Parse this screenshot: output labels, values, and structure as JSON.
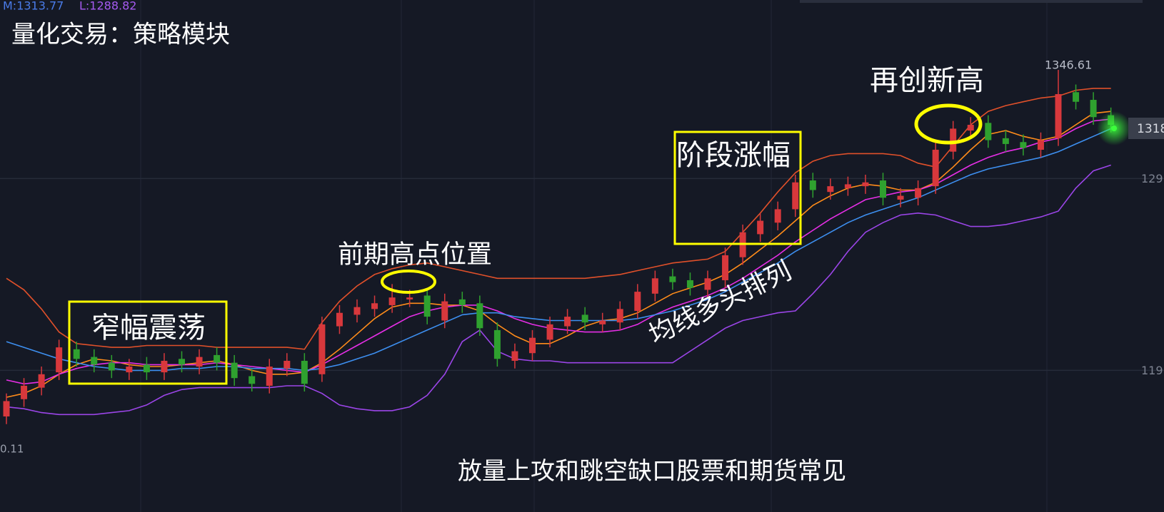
{
  "chart_data": {
    "type": "candlestick",
    "title": "量化交易：策略模块",
    "indicator_labels": [
      "M:1313.77",
      "L:1288.82"
    ],
    "ylim": [
      1116.2,
      1383.05
    ],
    "yticks": [
      {
        "value": 1290,
        "label": "129"
      },
      {
        "value": 1190,
        "label": "119"
      }
    ],
    "grid": true,
    "up_color": "#d8383c",
    "down_color": "#2fa12f",
    "open": [
      1166,
      1175,
      1181,
      1189,
      1201,
      1197,
      1194,
      1189,
      1193,
      1189,
      1196,
      1192,
      1198,
      1194,
      1187,
      1182,
      1191,
      1195,
      1188,
      1213,
      1219,
      1222,
      1224,
      1227,
      1229,
      1216,
      1227,
      1225,
      1211,
      1195,
      1199,
      1206,
      1213,
      1219,
      1214,
      1215,
      1221,
      1230,
      1239,
      1237,
      1232,
      1237,
      1249,
      1261,
      1267,
      1274,
      1289,
      1283,
      1285,
      1286,
      1289,
      1279,
      1280,
      1286,
      1304,
      1315,
      1319,
      1311,
      1309,
      1305,
      1311,
      1335,
      1331,
      1323
    ],
    "high": [
      1178,
      1186,
      1192,
      1206,
      1205,
      1201,
      1198,
      1196,
      1197,
      1199,
      1200,
      1201,
      1202,
      1198,
      1191,
      1196,
      1199,
      1199,
      1218,
      1224,
      1227,
      1229,
      1235,
      1232,
      1233,
      1230,
      1231,
      1229,
      1215,
      1204,
      1211,
      1218,
      1222,
      1223,
      1220,
      1226,
      1235,
      1242,
      1243,
      1241,
      1242,
      1254,
      1266,
      1272,
      1278,
      1292,
      1293,
      1290,
      1291,
      1292,
      1293,
      1285,
      1289,
      1309,
      1320,
      1322,
      1323,
      1315,
      1313,
      1314,
      1346.61,
      1339,
      1335,
      1327
    ],
    "low": [
      1162,
      1171,
      1177,
      1185,
      1192,
      1189,
      1186,
      1185,
      1185,
      1185,
      1189,
      1188,
      1190,
      1182,
      1179,
      1178,
      1187,
      1179,
      1184,
      1209,
      1215,
      1218,
      1220,
      1223,
      1214,
      1212,
      1220,
      1208,
      1192,
      1191,
      1195,
      1202,
      1209,
      1211,
      1210,
      1211,
      1217,
      1226,
      1232,
      1229,
      1228,
      1233,
      1245,
      1257,
      1263,
      1270,
      1280,
      1279,
      1281,
      1282,
      1276,
      1275,
      1276,
      1282,
      1300,
      1311,
      1306,
      1304,
      1302,
      1301,
      1307,
      1326,
      1318,
      1314
    ],
    "close": [
      1174,
      1182,
      1188,
      1202,
      1196,
      1193,
      1190,
      1192,
      1189,
      1195,
      1193,
      1197,
      1194,
      1186,
      1183,
      1192,
      1195,
      1183,
      1214,
      1220,
      1223,
      1225,
      1228,
      1228,
      1218,
      1226,
      1224,
      1212,
      1196,
      1200,
      1207,
      1214,
      1218,
      1215,
      1216,
      1222,
      1231,
      1238,
      1236,
      1233,
      1238,
      1250,
      1262,
      1268,
      1274,
      1288,
      1284,
      1286,
      1287,
      1288,
      1280,
      1281,
      1285,
      1305,
      1316,
      1318,
      1310,
      1308,
      1306,
      1310,
      1334,
      1330,
      1322,
      1318
    ],
    "series": [
      {
        "color": "#ff8c1a",
        "values": [
          1176,
          1178,
          1182,
          1188,
          1193,
          1196,
          1195,
          1193,
          1192,
          1192,
          1193,
          1194,
          1195,
          1193,
          1190,
          1188,
          1188,
          1189,
          1194,
          1201,
          1209,
          1217,
          1223,
          1225,
          1225,
          1224,
          1224,
          1221,
          1214,
          1208,
          1204,
          1204,
          1208,
          1213,
          1216,
          1217,
          1220,
          1225,
          1230,
          1233,
          1236,
          1240,
          1246,
          1253,
          1260,
          1268,
          1276,
          1281,
          1285,
          1287,
          1286,
          1284,
          1284,
          1288,
          1296,
          1305,
          1313,
          1315,
          1312,
          1310,
          1312,
          1318,
          1324,
          1325
        ]
      },
      {
        "color": "#e62ee6",
        "values": [
          1185,
          1183,
          1184,
          1188,
          1191,
          1193,
          1194,
          1194,
          1193,
          1193,
          1193,
          1193,
          1194,
          1193,
          1192,
          1191,
          1190,
          1189,
          1193,
          1198,
          1203,
          1208,
          1213,
          1218,
          1221,
          1223,
          1224,
          1224,
          1221,
          1217,
          1214,
          1212,
          1211,
          1210,
          1210,
          1211,
          1214,
          1219,
          1223,
          1226,
          1229,
          1233,
          1238,
          1244,
          1250,
          1257,
          1263,
          1269,
          1274,
          1279,
          1281,
          1283,
          1284,
          1287,
          1292,
          1297,
          1301,
          1304,
          1306,
          1309,
          1311,
          1316,
          1320,
          1321
        ]
      },
      {
        "color": "#3d8ff0",
        "values": [
          1205,
          1202,
          1199,
          1196,
          1194,
          1192,
          1191,
          1190,
          1190,
          1190,
          1191,
          1191,
          1192,
          1192,
          1191,
          1191,
          1191,
          1190,
          1191,
          1193,
          1196,
          1199,
          1203,
          1207,
          1211,
          1215,
          1219,
          1220,
          1220,
          1218,
          1217,
          1216,
          1216,
          1216,
          1216,
          1216,
          1217,
          1219,
          1221,
          1224,
          1227,
          1231,
          1236,
          1241,
          1246,
          1252,
          1257,
          1262,
          1267,
          1271,
          1274,
          1277,
          1280,
          1284,
          1288,
          1292,
          1295,
          1297,
          1299,
          1301,
          1304,
          1308,
          1312,
          1316
        ]
      },
      {
        "color": "#e0502a",
        "values": [
          1238,
          1232,
          1222,
          1210,
          1204,
          1203,
          1202,
          1202,
          1203,
          1203,
          1203,
          1203,
          1202,
          1202,
          1202,
          1202,
          1202,
          1201,
          1215,
          1226,
          1234,
          1240,
          1243,
          1245,
          1246,
          1244,
          1242,
          1240,
          1238,
          1238,
          1238,
          1238,
          1238,
          1238,
          1239,
          1240,
          1242,
          1244,
          1246,
          1247,
          1248,
          1252,
          1262,
          1272,
          1283,
          1293,
          1299,
          1302,
          1303,
          1303,
          1303,
          1302,
          1298,
          1296,
          1307,
          1318,
          1325,
          1328,
          1330,
          1332,
          1333,
          1336,
          1337,
          1337
        ]
      },
      {
        "color": "#9b45e8",
        "values": [
          1171,
          1170,
          1168,
          1167,
          1167,
          1167,
          1168,
          1169,
          1172,
          1177,
          1180,
          1181,
          1181,
          1181,
          1181,
          1181,
          1182,
          1182,
          1178,
          1172,
          1170,
          1169,
          1169,
          1171,
          1177,
          1188,
          1205,
          1211,
          1200,
          1196,
          1195,
          1195,
          1194,
          1194,
          1194,
          1194,
          1194,
          1194,
          1194,
          1200,
          1206,
          1212,
          1216,
          1218,
          1220,
          1221,
          1230,
          1240,
          1252,
          1262,
          1267,
          1271,
          1272,
          1271,
          1268,
          1265,
          1265,
          1266,
          1268,
          1270,
          1273,
          1285,
          1294,
          1297
        ]
      }
    ],
    "annotations": [
      "窄幅震荡",
      "前期高点位置",
      "阶段涨幅",
      "均线多头排列",
      "再创新高",
      "放量上攻和跳空缺口股票和期货常见",
      "1346.61",
      "1318",
      "0.11"
    ]
  }
}
